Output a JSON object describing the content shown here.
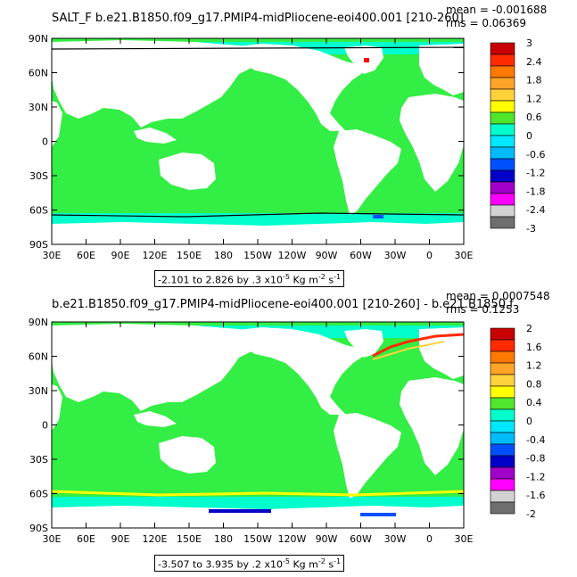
{
  "colors": {
    "ocean_zero": "#33ee44",
    "land": "#ffffff",
    "contour": "#000000",
    "levels_top": [
      "#c80000",
      "#ff2a00",
      "#ff7800",
      "#ffa428",
      "#ffd23c",
      "#ffff00",
      "#4fe62c",
      "#00ffcc",
      "#00e8ff",
      "#00bcff",
      "#0050ff",
      "#0000c8",
      "#a000c8",
      "#ff00ff",
      "#d2d2d2",
      "#6e6e6e"
    ]
  },
  "chart_data": [
    {
      "type": "heatmap",
      "title_left": "SALT_F  b.e21.B1850.f09_g17.PMIP4-midPliocene-eoi400.001  [210-260]",
      "title_overlap": "",
      "stat_mean": "mean = -0.001688",
      "stat_rms": "rms = 0.06369",
      "y_ticks": [
        "90N",
        "60N",
        "30N",
        "0",
        "30S",
        "60S",
        "90S"
      ],
      "x_ticks": [
        "30E",
        "60E",
        "90E",
        "120E",
        "150E",
        "180",
        "150W",
        "120W",
        "90W",
        "60W",
        "30W",
        "0",
        "30E"
      ],
      "info_range": "-2.101 to 2.826 by .3 x10",
      "info_exp": "-5",
      "info_units": " Kg m",
      "info_unit_exp1": "-2",
      "info_s": " s",
      "info_unit_exp2": "-1",
      "colorbar_labels": [
        "3",
        "2.4",
        "1.8",
        "1.2",
        "0.6",
        "0",
        "-0.6",
        "-1.2",
        "-1.8",
        "-2.4",
        "-3"
      ],
      "colorbar_colors": [
        "#c80000",
        "#ff2a00",
        "#ff7800",
        "#ffa428",
        "#ffd23c",
        "#ffff00",
        "#4fe62c",
        "#00ffcc",
        "#00e8ff",
        "#00bcff",
        "#0050ff",
        "#0000c8",
        "#a000c8",
        "#ff00ff",
        "#d2d2d2",
        "#6e6e6e"
      ]
    },
    {
      "type": "heatmap",
      "title_left": "b.e21.B1850.f09_g17.PMIP4-midPliocene-eoi400.001  [210-260]  -  b.e21.B1850.f",
      "stat_mean": "mean = 0.0007548",
      "stat_rms": "rms = 0.1253",
      "y_ticks": [
        "90N",
        "60N",
        "30N",
        "0",
        "30S",
        "60S",
        "90S"
      ],
      "x_ticks": [
        "30E",
        "60E",
        "90E",
        "120E",
        "150E",
        "180",
        "150W",
        "120W",
        "90W",
        "60W",
        "30W",
        "0",
        "30E"
      ],
      "info_range": "-3.507 to 3.935 by .2 x10",
      "info_exp": "-5",
      "info_units": " Kg m",
      "info_unit_exp1": "-2",
      "info_s": " s",
      "info_unit_exp2": "-1",
      "colorbar_labels": [
        "2",
        "1.6",
        "1.2",
        "0.8",
        "0.4",
        "0",
        "-0.4",
        "-0.8",
        "-1.2",
        "-1.6",
        "-2"
      ],
      "colorbar_colors": [
        "#c80000",
        "#ff2a00",
        "#ff7800",
        "#ffa428",
        "#ffd23c",
        "#ffff00",
        "#4fe62c",
        "#00ffcc",
        "#00e8ff",
        "#00bcff",
        "#0050ff",
        "#0000c8",
        "#a000c8",
        "#ff00ff",
        "#d2d2d2",
        "#6e6e6e"
      ]
    }
  ]
}
